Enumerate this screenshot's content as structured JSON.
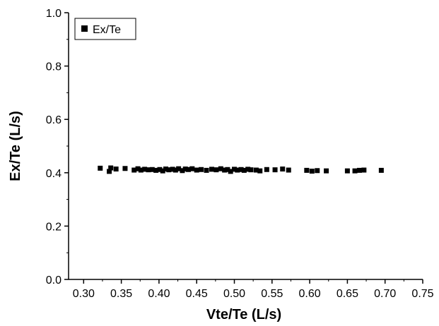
{
  "chart_data": {
    "type": "scatter",
    "xlabel": "Vte/Te (L/s)",
    "ylabel": "Ex/Te (L/s)",
    "xlim": [
      0.28,
      0.75
    ],
    "ylim": [
      0.0,
      1.0
    ],
    "x_ticks": [
      "0.30",
      "0.35",
      "0.40",
      "0.45",
      "0.50",
      "0.55",
      "0.60",
      "0.65",
      "0.70",
      "0.75"
    ],
    "y_ticks": [
      "0.0",
      "0.2",
      "0.4",
      "0.6",
      "0.8",
      "1.0"
    ],
    "grid": false,
    "legend_position": "top-left",
    "series": [
      {
        "name": "Ex/Te",
        "color": "#000000",
        "marker": "square",
        "points": [
          [
            0.322,
            0.417
          ],
          [
            0.334,
            0.405
          ],
          [
            0.336,
            0.418
          ],
          [
            0.343,
            0.414
          ],
          [
            0.355,
            0.416
          ],
          [
            0.367,
            0.41
          ],
          [
            0.372,
            0.415
          ],
          [
            0.376,
            0.41
          ],
          [
            0.381,
            0.413
          ],
          [
            0.386,
            0.411
          ],
          [
            0.391,
            0.412
          ],
          [
            0.396,
            0.409
          ],
          [
            0.401,
            0.412
          ],
          [
            0.405,
            0.407
          ],
          [
            0.409,
            0.414
          ],
          [
            0.413,
            0.411
          ],
          [
            0.418,
            0.413
          ],
          [
            0.422,
            0.41
          ],
          [
            0.426,
            0.415
          ],
          [
            0.431,
            0.408
          ],
          [
            0.435,
            0.414
          ],
          [
            0.439,
            0.412
          ],
          [
            0.444,
            0.415
          ],
          [
            0.45,
            0.41
          ],
          [
            0.456,
            0.412
          ],
          [
            0.463,
            0.409
          ],
          [
            0.47,
            0.413
          ],
          [
            0.476,
            0.411
          ],
          [
            0.482,
            0.415
          ],
          [
            0.487,
            0.41
          ],
          [
            0.491,
            0.412
          ],
          [
            0.495,
            0.405
          ],
          [
            0.5,
            0.413
          ],
          [
            0.504,
            0.41
          ],
          [
            0.509,
            0.412
          ],
          [
            0.513,
            0.409
          ],
          [
            0.518,
            0.413
          ],
          [
            0.522,
            0.411
          ],
          [
            0.529,
            0.41
          ],
          [
            0.534,
            0.407
          ],
          [
            0.543,
            0.412
          ],
          [
            0.554,
            0.411
          ],
          [
            0.564,
            0.414
          ],
          [
            0.572,
            0.41
          ],
          [
            0.596,
            0.409
          ],
          [
            0.603,
            0.406
          ],
          [
            0.61,
            0.408
          ],
          [
            0.622,
            0.407
          ],
          [
            0.65,
            0.407
          ],
          [
            0.66,
            0.407
          ],
          [
            0.666,
            0.409
          ],
          [
            0.672,
            0.41
          ],
          [
            0.695,
            0.409
          ]
        ]
      }
    ]
  }
}
